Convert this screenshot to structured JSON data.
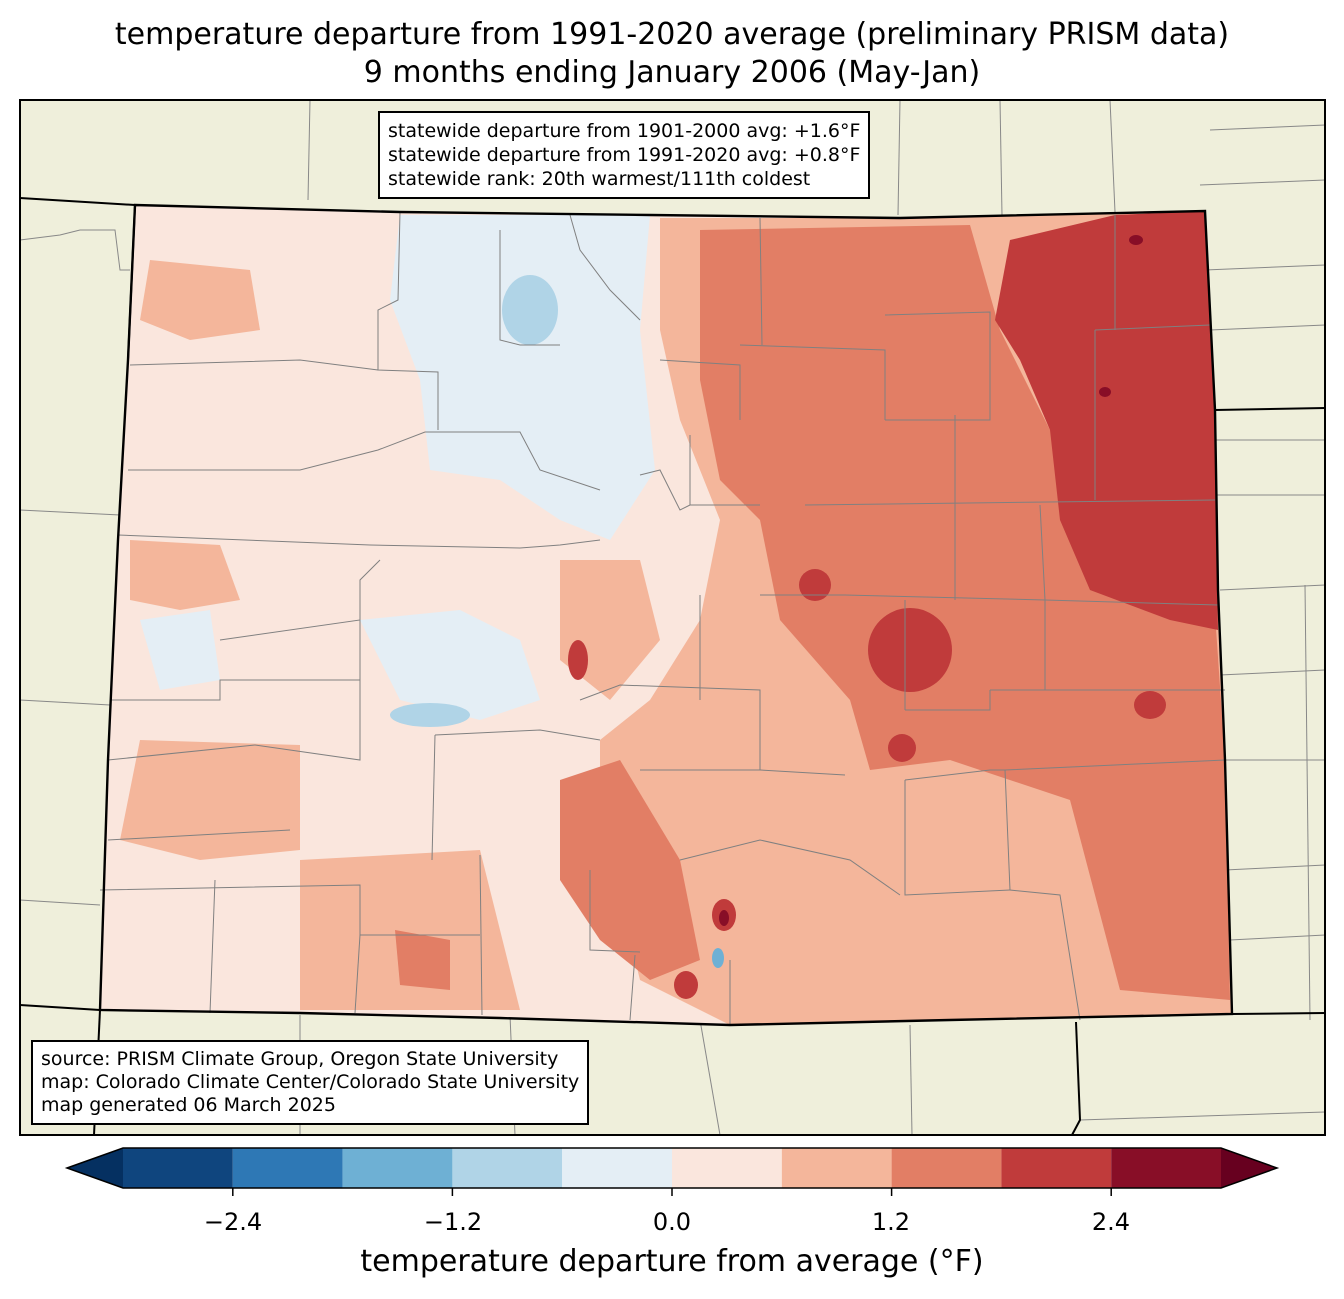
{
  "title_line1": "temperature departure from 1991-2020 average (preliminary PRISM data)",
  "title_line2": "9 months ending January 2006 (May-Jan)",
  "stats": {
    "line1": "statewide departure from 1901-2000 avg: +1.6°F",
    "line2": "statewide departure from 1991-2020 avg: +0.8°F",
    "line3": "statewide rank: 20th warmest/111th coldest"
  },
  "source": {
    "line1": "source: PRISM Climate Group, Oregon State University",
    "line2": "map: Colorado Climate Center/Colorado State University",
    "line3": "map generated 06 March 2025"
  },
  "colorbar": {
    "label": "temperature departure from average (°F)",
    "ticks": [
      "−2.4",
      "−1.2",
      "0.0",
      "1.2",
      "2.4"
    ],
    "bins": [
      -3.0,
      -2.4,
      -1.8,
      -1.2,
      -0.6,
      0.0,
      0.6,
      1.2,
      1.8,
      2.4,
      3.0
    ],
    "colors": [
      "#0f457e",
      "#2e78b5",
      "#6eb0d4",
      "#b0d4e7",
      "#e4eef5",
      "#fae6dd",
      "#f4b69b",
      "#e27e65",
      "#c03b3b",
      "#880e27"
    ],
    "under_color": "#053061",
    "over_color": "#67001f"
  },
  "colors": {
    "land_outside": "#efefdb",
    "border": "#000000",
    "county_line": "#808080"
  }
}
